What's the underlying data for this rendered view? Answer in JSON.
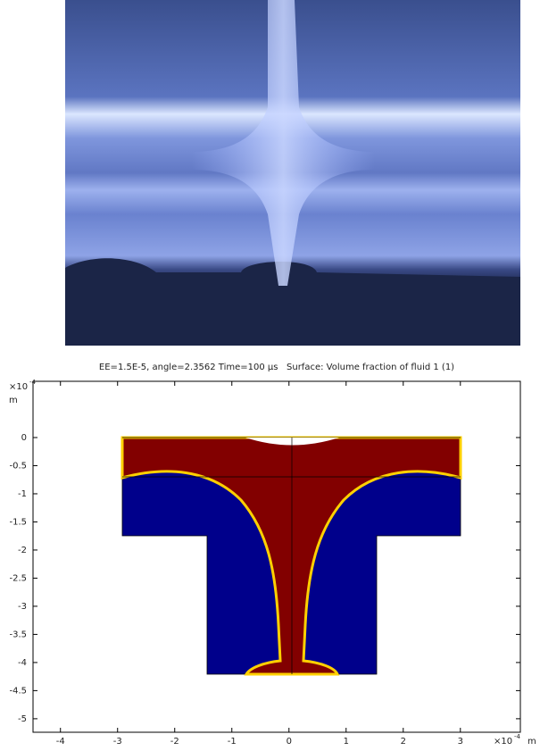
{
  "chart_data": {
    "type": "field",
    "title": "EE=1.5E-5, angle=2.3562 Time=100 µs   Surface: Volume fraction of fluid 1 (1)",
    "axis_scale": "×10",
    "axis_exponent": "-4",
    "axis_unit": "m",
    "xlim": [
      -4.48,
      4.05
    ],
    "ylim": [
      -5.24,
      1.0
    ],
    "xticks": [
      -4,
      -3,
      -2,
      -1,
      0,
      1,
      2,
      3
    ],
    "yticks": [
      0,
      -0.5,
      -1,
      -1.5,
      -2,
      -2.5,
      -3,
      -3.5,
      -4,
      -4.5,
      -5
    ]
  }
}
